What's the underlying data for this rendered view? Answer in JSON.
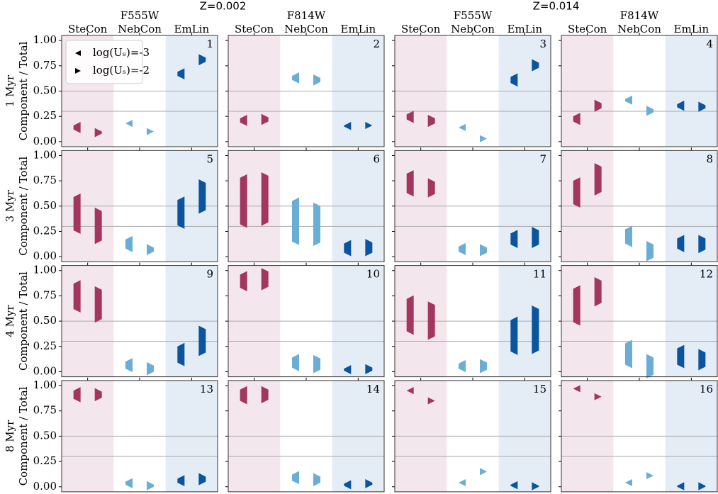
{
  "chart_data": {
    "type": "range",
    "ylabel": "Component / Total",
    "ylim": [
      -0.05,
      1.05
    ],
    "yticks": [
      {
        "value": 0,
        "label": "0.00"
      },
      {
        "value": 0.25,
        "label": "0.25"
      },
      {
        "value": 0.5,
        "label": "0.50"
      },
      {
        "value": 0.75,
        "label": "0.75"
      },
      {
        "value": 1,
        "label": "1.00"
      }
    ],
    "reference_lines": [
      0.3,
      0.5
    ],
    "metallicities": [
      "Z=0.002",
      "Z=0.014"
    ],
    "filters": [
      "F555W",
      "F814W"
    ],
    "ages": [
      "1 Myr",
      "3 Myr",
      "4 Myr",
      "8 Myr"
    ],
    "components": [
      {
        "name": "SteCon",
        "color": "#a2365f",
        "background": "#f3e7ed"
      },
      {
        "name": "NebCon",
        "color": "#6aaed6",
        "background": null
      },
      {
        "name": "EmLin",
        "color": "#0b559f",
        "background": "#e4ecf5"
      }
    ],
    "series": [
      {
        "name": "log(Uₛ)=-3",
        "marker": "left"
      },
      {
        "name": "log(Uₛ)=-2",
        "marker": "right"
      }
    ],
    "legend": "upper left",
    "panels": [
      {
        "label": "1",
        "values": [
          [
            [
              0.12,
              0.16
            ],
            [
              0.18,
              0.18
            ],
            [
              0.65,
              0.69
            ]
          ],
          [
            [
              0.08,
              0.1
            ],
            [
              0.1,
              0.1
            ],
            [
              0.79,
              0.83
            ]
          ]
        ]
      },
      {
        "label": "2",
        "values": [
          [
            [
              0.19,
              0.23
            ],
            [
              0.61,
              0.65
            ],
            [
              0.15,
              0.16
            ]
          ],
          [
            [
              0.2,
              0.24
            ],
            [
              0.59,
              0.63
            ],
            [
              0.16,
              0.16
            ]
          ]
        ]
      },
      {
        "label": "3",
        "values": [
          [
            [
              0.22,
              0.27
            ],
            [
              0.14,
              0.14
            ],
            [
              0.58,
              0.64
            ]
          ],
          [
            [
              0.18,
              0.23
            ],
            [
              0.03,
              0.03
            ],
            [
              0.73,
              0.78
            ]
          ]
        ]
      },
      {
        "label": "4",
        "values": [
          [
            [
              0.2,
              0.25
            ],
            [
              0.4,
              0.42
            ],
            [
              0.34,
              0.37
            ]
          ],
          [
            [
              0.33,
              0.38
            ],
            [
              0.29,
              0.32
            ],
            [
              0.33,
              0.36
            ]
          ]
        ]
      },
      {
        "label": "5",
        "values": [
          [
            [
              0.26,
              0.59
            ],
            [
              0.08,
              0.17
            ],
            [
              0.31,
              0.56
            ]
          ],
          [
            [
              0.16,
              0.45
            ],
            [
              0.05,
              0.09
            ],
            [
              0.46,
              0.73
            ]
          ]
        ]
      },
      {
        "label": "6",
        "values": [
          [
            [
              0.32,
              0.78
            ],
            [
              0.15,
              0.55
            ],
            [
              0.04,
              0.13
            ]
          ],
          [
            [
              0.34,
              0.8
            ],
            [
              0.14,
              0.5
            ],
            [
              0.04,
              0.14
            ]
          ]
        ]
      },
      {
        "label": "7",
        "values": [
          [
            [
              0.63,
              0.82
            ],
            [
              0.05,
              0.1
            ],
            [
              0.12,
              0.23
            ]
          ],
          [
            [
              0.62,
              0.74
            ],
            [
              0.04,
              0.09
            ],
            [
              0.12,
              0.26
            ]
          ]
        ]
      },
      {
        "label": "8",
        "values": [
          [
            [
              0.52,
              0.75
            ],
            [
              0.13,
              0.27
            ],
            [
              0.08,
              0.18
            ]
          ],
          [
            [
              0.64,
              0.89
            ],
            [
              -0.01,
              0.12
            ],
            [
              0.07,
              0.18
            ]
          ]
        ]
      },
      {
        "label": "9",
        "values": [
          [
            [
              0.62,
              0.87
            ],
            [
              0.03,
              0.1
            ],
            [
              0.09,
              0.25
            ]
          ],
          [
            [
              0.52,
              0.81
            ],
            [
              0.0,
              0.06
            ],
            [
              0.19,
              0.42
            ]
          ]
        ]
      },
      {
        "label": "10",
        "values": [
          [
            [
              0.83,
              0.96
            ],
            [
              0.04,
              0.14
            ],
            [
              0.01,
              0.03
            ]
          ],
          [
            [
              0.84,
              0.99
            ],
            [
              0.02,
              0.13
            ],
            [
              0.01,
              0.04
            ]
          ]
        ]
      },
      {
        "label": "11",
        "values": [
          [
            [
              0.4,
              0.72
            ],
            [
              0.03,
              0.08
            ],
            [
              0.2,
              0.51
            ]
          ],
          [
            [
              0.35,
              0.66
            ],
            [
              0.02,
              0.09
            ],
            [
              0.21,
              0.62
            ]
          ]
        ]
      },
      {
        "label": "12",
        "values": [
          [
            [
              0.49,
              0.82
            ],
            [
              0.07,
              0.28
            ],
            [
              0.07,
              0.23
            ]
          ],
          [
            [
              0.68,
              0.9
            ],
            [
              -0.03,
              0.14
            ],
            [
              0.05,
              0.19
            ]
          ]
        ]
      },
      {
        "label": "13",
        "values": [
          [
            [
              0.87,
              0.95
            ],
            [
              0.02,
              0.05
            ],
            [
              0.04,
              0.08
            ]
          ],
          [
            [
              0.88,
              0.94
            ],
            [
              0.0,
              0.02
            ],
            [
              0.05,
              0.1
            ]
          ]
        ]
      },
      {
        "label": "14",
        "values": [
          [
            [
              0.85,
              0.96
            ],
            [
              0.06,
              0.12
            ],
            [
              0.01,
              0.03
            ]
          ],
          [
            [
              0.86,
              0.96
            ],
            [
              0.04,
              0.1
            ],
            [
              0.02,
              0.04
            ]
          ]
        ]
      },
      {
        "label": "15",
        "values": [
          [
            [
              0.95,
              0.95
            ],
            [
              0.04,
              0.04
            ],
            [
              0.01,
              0.02
            ]
          ],
          [
            [
              0.85,
              0.85
            ],
            [
              0.15,
              0.15
            ],
            [
              0.0,
              0.01
            ]
          ]
        ]
      },
      {
        "label": "16",
        "values": [
          [
            [
              0.97,
              0.97
            ],
            [
              0.04,
              0.04
            ],
            [
              0.0,
              0.01
            ]
          ],
          [
            [
              0.89,
              0.89
            ],
            [
              0.11,
              0.11
            ],
            [
              0.0,
              0.01
            ]
          ]
        ]
      }
    ]
  }
}
